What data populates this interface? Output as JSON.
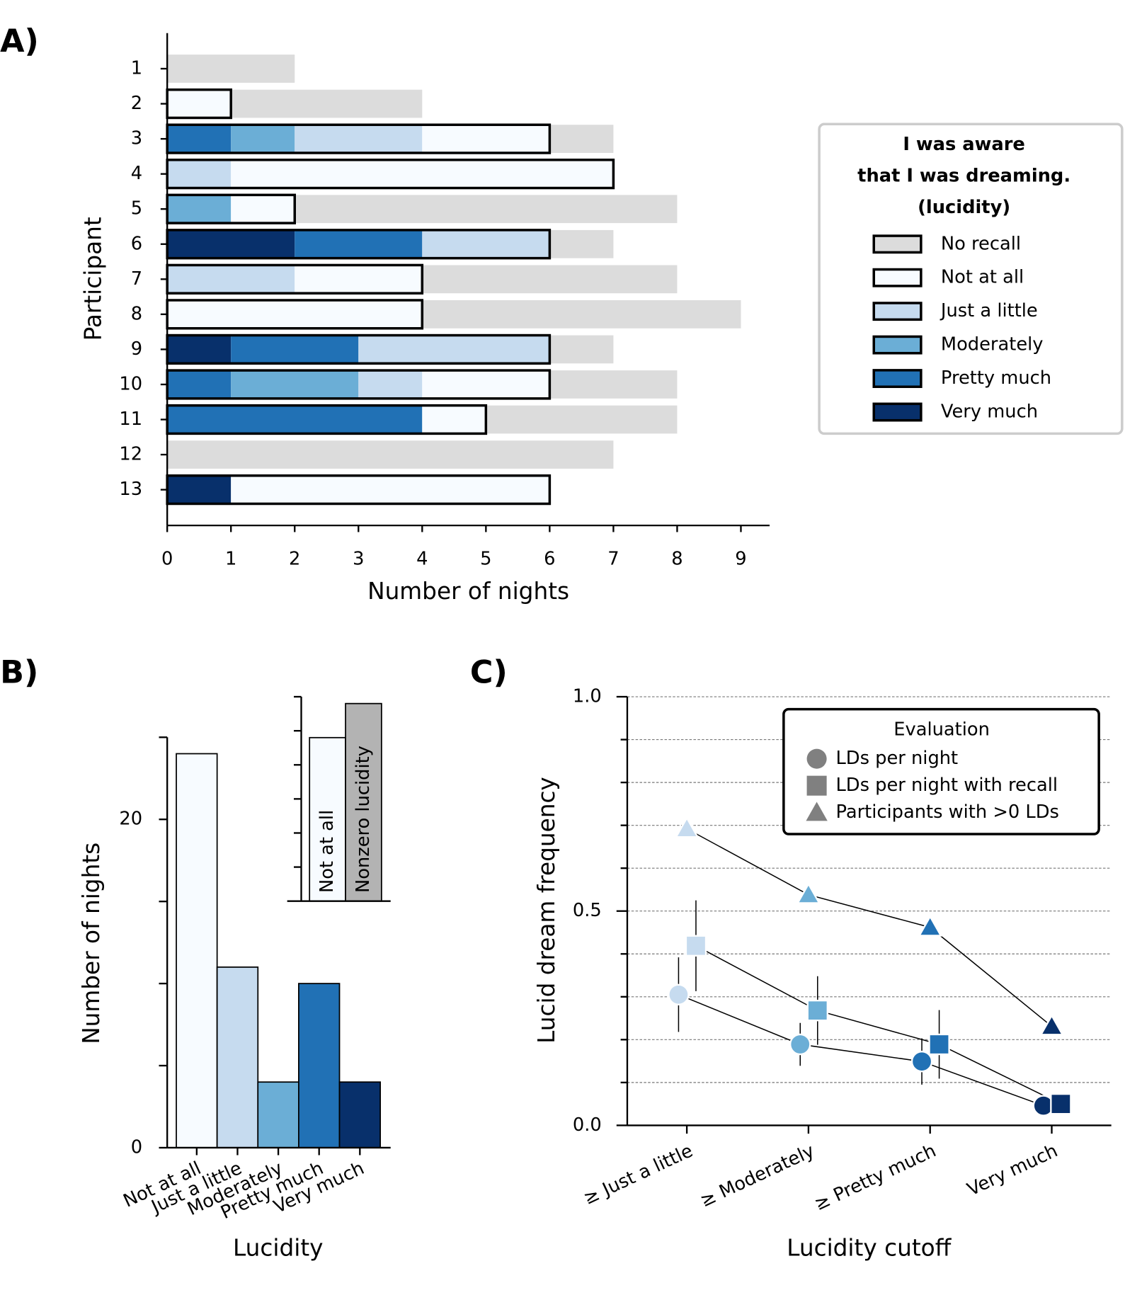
{
  "chart_data": [
    {
      "type": "bar",
      "orientation": "horizontal",
      "stacked": true,
      "panel_label": "A)",
      "ylabel": "Participant",
      "xlabel": "Number of nights",
      "categories": [
        "1",
        "2",
        "3",
        "4",
        "5",
        "6",
        "7",
        "8",
        "9",
        "10",
        "11",
        "12",
        "13"
      ],
      "xlim": [
        0,
        9.45
      ],
      "xticks": [
        0,
        1,
        2,
        3,
        4,
        5,
        6,
        7,
        8,
        9
      ],
      "legend_title": [
        "I was aware",
        "that I was dreaming.",
        "(lucidity)"
      ],
      "legend_position": "outside right",
      "series": [
        {
          "name": "No recall",
          "color": "#dcdcdc",
          "values": [
            2,
            3,
            1,
            0,
            6,
            1,
            4,
            5,
            1,
            2,
            3,
            7,
            0
          ]
        },
        {
          "name": "Not at all",
          "color": "#f7fbff",
          "values": [
            0,
            1,
            2,
            6,
            1,
            0,
            2,
            4,
            0,
            2,
            1,
            0,
            5
          ]
        },
        {
          "name": "Just a little",
          "color": "#c6dbef",
          "values": [
            0,
            0,
            2,
            1,
            0,
            2,
            2,
            0,
            3,
            1,
            0,
            0,
            0
          ]
        },
        {
          "name": "Moderately",
          "color": "#6baed6",
          "values": [
            0,
            0,
            1,
            0,
            1,
            0,
            0,
            0,
            0,
            2,
            0,
            0,
            0
          ]
        },
        {
          "name": "Pretty much",
          "color": "#2171b5",
          "values": [
            0,
            0,
            1,
            0,
            0,
            2,
            0,
            0,
            2,
            1,
            4,
            0,
            0
          ]
        },
        {
          "name": "Very much",
          "color": "#08306b",
          "values": [
            0,
            0,
            0,
            0,
            0,
            2,
            0,
            0,
            1,
            0,
            0,
            0,
            1
          ]
        }
      ]
    },
    {
      "type": "bar",
      "panel_label": "B)",
      "xlabel": "Lucidity",
      "ylabel": "Number of nights",
      "categories": [
        "Not at all",
        "Just a little",
        "Moderately",
        "Pretty much",
        "Very much"
      ],
      "values": [
        24,
        11,
        4,
        10,
        4
      ],
      "colors": [
        "#f7fbff",
        "#c6dbef",
        "#6baed6",
        "#2171b5",
        "#08306b"
      ],
      "ylim": [
        0,
        25
      ],
      "yticks": [
        0,
        20
      ],
      "yminor_ticks": [
        5,
        10,
        15,
        25
      ]
    },
    {
      "type": "bar",
      "inset": true,
      "categories": [
        "Not at all",
        "Nonzero lucidity"
      ],
      "values": [
        24,
        29
      ],
      "colors": [
        "#f7fbff",
        "#b3b3b3"
      ],
      "ylim": [
        0,
        30
      ],
      "yminor_ticks": [
        5,
        10,
        15,
        20,
        25,
        30
      ]
    },
    {
      "type": "line",
      "panel_label": "C)",
      "xlabel": "Lucidity cutoff",
      "ylabel": "Lucid dream frequency",
      "categories": [
        "≥ Just a little",
        "≥ Moderately",
        "≥ Pretty much",
        "Very much"
      ],
      "point_colors": [
        "#c6dbef",
        "#6baed6",
        "#2171b5",
        "#08306b"
      ],
      "ylim": [
        0,
        1
      ],
      "yticks": [
        {
          "value": 0,
          "label": "0.0"
        },
        0.5,
        {
          "value": 1,
          "label": "1.0"
        }
      ],
      "yminor_ticks": [
        0.1,
        0.2,
        0.3,
        0.4,
        0.6,
        0.7,
        0.8,
        0.9
      ],
      "grid": true,
      "legend_title": "Evaluation",
      "legend_position": "upper right",
      "series": [
        {
          "name": "LDs per night",
          "marker": "circle",
          "color": "#808080",
          "values": [
            0.305,
            0.189,
            0.149,
            0.046
          ],
          "errors": [
            0.087,
            0.05,
            0.054,
            0.02
          ]
        },
        {
          "name": "LDs per night with recall",
          "marker": "square",
          "color": "#808080",
          "values": [
            0.419,
            0.268,
            0.189,
            0.05
          ],
          "errors": [
            0.106,
            0.08,
            0.08,
            0.02
          ]
        },
        {
          "name": "Participants with >0 LDs",
          "marker": "triangle",
          "color": "#808080",
          "values": [
            0.692,
            0.538,
            0.462,
            0.231
          ]
        }
      ]
    }
  ]
}
